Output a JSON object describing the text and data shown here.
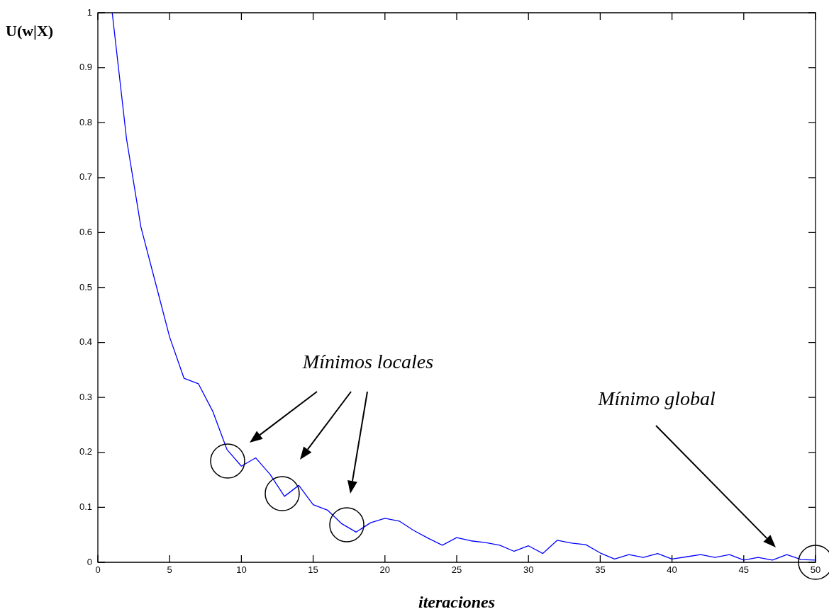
{
  "chart_data": {
    "type": "line",
    "xlabel": "iteraciones",
    "ylabel": "U(w|X)",
    "x": [
      1,
      2,
      3,
      4,
      5,
      6,
      7,
      8,
      9,
      10,
      11,
      12,
      13,
      14,
      15,
      16,
      17,
      18,
      19,
      20,
      21,
      22,
      23,
      24,
      25,
      26,
      27,
      28,
      29,
      30,
      31,
      32,
      33,
      34,
      35,
      36,
      37,
      38,
      39,
      40,
      41,
      42,
      43,
      44,
      45,
      46,
      47,
      48,
      49,
      50
    ],
    "series": [
      {
        "color": "#0000ff",
        "values": [
          1.0,
          0.77,
          0.61,
          0.51,
          0.41,
          0.335,
          0.325,
          0.275,
          0.205,
          0.175,
          0.19,
          0.16,
          0.12,
          0.14,
          0.105,
          0.095,
          0.07,
          0.055,
          0.072,
          0.08,
          0.075,
          0.058,
          0.044,
          0.031,
          0.045,
          0.039,
          0.036,
          0.031,
          0.02,
          0.03,
          0.016,
          0.04,
          0.035,
          0.032,
          0.017,
          0.006,
          0.014,
          0.009,
          0.016,
          0.006,
          0.01,
          0.014,
          0.009,
          0.014,
          0.004,
          0.009,
          0.004,
          0.014,
          0.005,
          0.004
        ]
      }
    ],
    "xlim": [
      0,
      50
    ],
    "xticks": [
      0,
      5,
      10,
      15,
      20,
      25,
      30,
      35,
      40,
      45,
      50
    ],
    "ylim": [
      0,
      1
    ],
    "yticks": [
      0,
      0.1,
      0.2,
      0.3,
      0.4,
      0.5,
      0.6,
      0.7,
      0.8,
      0.9,
      1
    ],
    "grid": false,
    "legend": false,
    "marker": "none",
    "line_style": "solid",
    "annotations": [
      "Mínimos locales",
      "Mínimo global"
    ]
  }
}
